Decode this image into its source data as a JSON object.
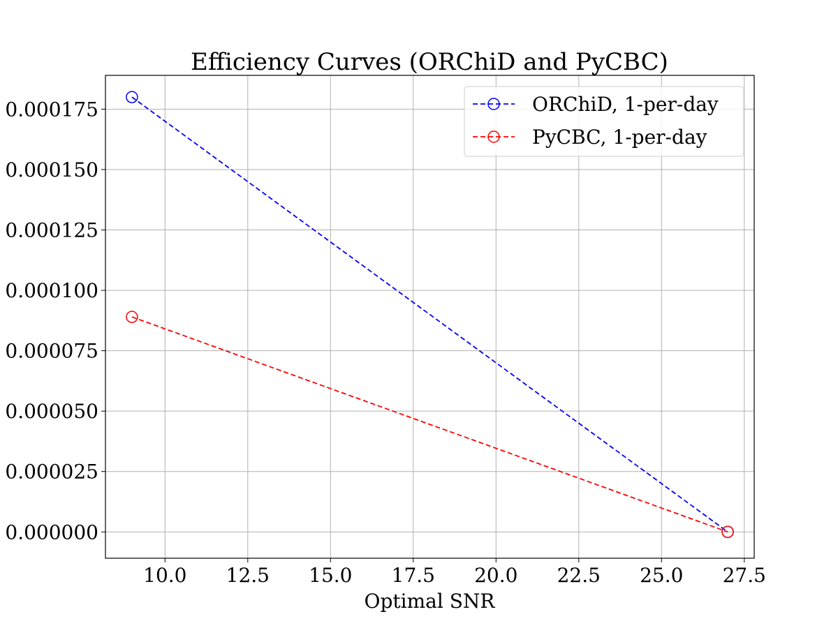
{
  "chart_data": {
    "type": "line",
    "title": "Efficiency Curves (ORChiD and PyCBC)",
    "xlabel": "Optimal SNR",
    "ylabel": "",
    "xlim": [
      8.2,
      27.8
    ],
    "ylim": [
      -1.09e-05,
      0.000189
    ],
    "xticks": [
      10.0,
      12.5,
      15.0,
      17.5,
      20.0,
      22.5,
      25.0,
      27.5
    ],
    "xtick_labels": [
      "10.0",
      "12.5",
      "15.0",
      "17.5",
      "20.0",
      "22.5",
      "25.0",
      "27.5"
    ],
    "yticks": [
      0.0,
      2.5e-05,
      5e-05,
      7.5e-05,
      0.0001,
      0.000125,
      0.00015,
      0.000175
    ],
    "ytick_labels": [
      "0.000000",
      "0.000025",
      "0.000050",
      "0.000075",
      "0.000100",
      "0.000125",
      "0.000150",
      "0.000175"
    ],
    "grid": true,
    "legend_position": "top-right",
    "series": [
      {
        "name": "ORChiD, 1-per-day",
        "color": "#0000ff",
        "linestyle": "dashed",
        "marker": "open-circle",
        "x": [
          9.0,
          27.0
        ],
        "y": [
          0.00018,
          0.0
        ]
      },
      {
        "name": "PyCBC, 1-per-day",
        "color": "#ff0000",
        "linestyle": "dashed",
        "marker": "open-circle",
        "x": [
          9.0,
          27.0
        ],
        "y": [
          8.9e-05,
          0.0
        ]
      }
    ]
  }
}
